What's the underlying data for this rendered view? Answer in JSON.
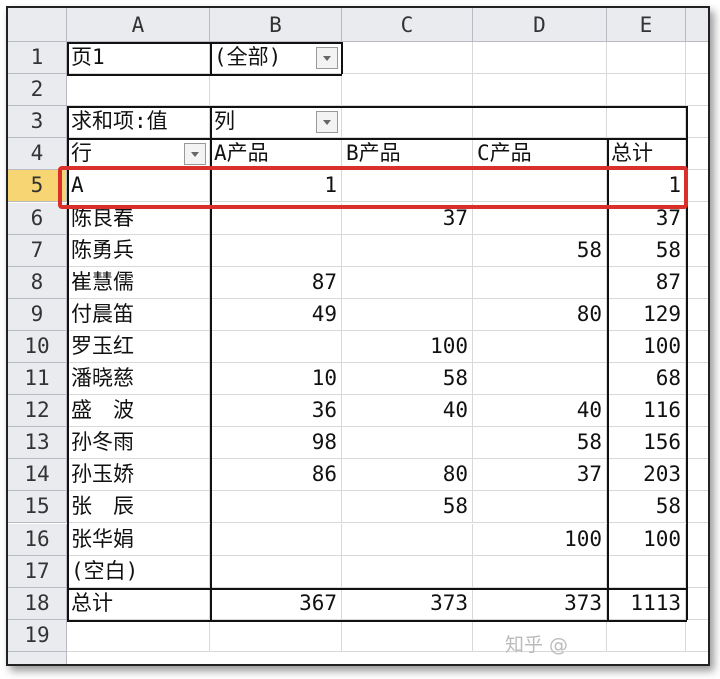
{
  "columns": [
    "A",
    "B",
    "C",
    "D",
    "E"
  ],
  "rows": [
    {
      "n": "1",
      "cells": [
        "页1",
        "(全部)",
        "",
        "",
        ""
      ]
    },
    {
      "n": "2",
      "cells": [
        "",
        "",
        "",
        "",
        ""
      ]
    },
    {
      "n": "3",
      "cells": [
        "求和项:值",
        "列",
        "",
        "",
        ""
      ]
    },
    {
      "n": "4",
      "cells": [
        "行",
        "A产品",
        "B产品",
        "C产品",
        "总计"
      ]
    },
    {
      "n": "5",
      "cells": [
        "A",
        "1",
        "",
        "",
        "1"
      ]
    },
    {
      "n": "6",
      "cells": [
        "陈良春",
        "",
        "37",
        "",
        "37"
      ]
    },
    {
      "n": "7",
      "cells": [
        "陈勇兵",
        "",
        "",
        "58",
        "58"
      ]
    },
    {
      "n": "8",
      "cells": [
        "崔慧儒",
        "87",
        "",
        "",
        "87"
      ]
    },
    {
      "n": "9",
      "cells": [
        "付晨笛",
        "49",
        "",
        "80",
        "129"
      ]
    },
    {
      "n": "10",
      "cells": [
        "罗玉红",
        "",
        "100",
        "",
        "100"
      ]
    },
    {
      "n": "11",
      "cells": [
        "潘晓慈",
        "10",
        "58",
        "",
        "68"
      ]
    },
    {
      "n": "12",
      "cells": [
        "盛　波",
        "36",
        "40",
        "40",
        "116"
      ]
    },
    {
      "n": "13",
      "cells": [
        "孙冬雨",
        "98",
        "",
        "58",
        "156"
      ]
    },
    {
      "n": "14",
      "cells": [
        "孙玉娇",
        "86",
        "80",
        "37",
        "203"
      ]
    },
    {
      "n": "15",
      "cells": [
        "张　辰",
        "",
        "58",
        "",
        "58"
      ]
    },
    {
      "n": "16",
      "cells": [
        "张华娟",
        "",
        "",
        "100",
        "100"
      ]
    },
    {
      "n": "17",
      "cells": [
        "(空白)",
        "",
        "",
        "",
        ""
      ]
    },
    {
      "n": "18",
      "cells": [
        "总计",
        "367",
        "373",
        "373",
        "1113"
      ]
    },
    {
      "n": "19",
      "cells": [
        "",
        "",
        "",
        "",
        ""
      ]
    }
  ],
  "selected_row": "5",
  "highlight_color": "#d9302c",
  "watermark": "知乎 @"
}
